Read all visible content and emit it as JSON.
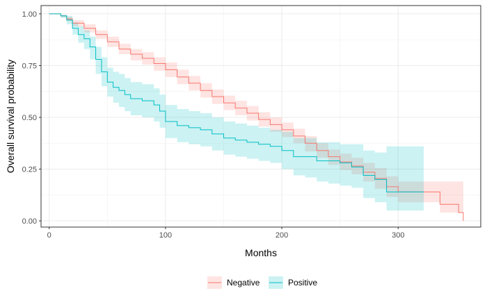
{
  "chart_data": {
    "type": "line",
    "subtype": "kaplan-meier survival curve with confidence bands",
    "xlabel": "Months",
    "ylabel": "Overall survival probability",
    "xlim": [
      -7,
      371
    ],
    "ylim": [
      -0.03,
      1.04
    ],
    "x_ticks": [
      0,
      100,
      200,
      300
    ],
    "x_tick_labels": [
      "0",
      "100",
      "200",
      "300"
    ],
    "y_ticks": [
      0,
      0.25,
      0.5,
      0.75,
      1.0
    ],
    "y_tick_labels": [
      "0.00",
      "0.25",
      "0.50",
      "0.75",
      "1.00"
    ],
    "grid": true,
    "legend_position": "bottom",
    "series": [
      {
        "name": "Negative",
        "color": "#F8766D",
        "fill": "#F8766D",
        "points": [
          [
            0,
            1.0
          ],
          [
            10,
            0.99
          ],
          [
            15,
            0.975
          ],
          [
            20,
            0.955
          ],
          [
            30,
            0.93
          ],
          [
            40,
            0.9
          ],
          [
            50,
            0.865
          ],
          [
            60,
            0.83
          ],
          [
            70,
            0.805
          ],
          [
            80,
            0.785
          ],
          [
            90,
            0.76
          ],
          [
            100,
            0.73
          ],
          [
            110,
            0.695
          ],
          [
            120,
            0.665
          ],
          [
            130,
            0.63
          ],
          [
            140,
            0.6
          ],
          [
            150,
            0.57
          ],
          [
            160,
            0.545
          ],
          [
            170,
            0.52
          ],
          [
            180,
            0.49
          ],
          [
            190,
            0.465
          ],
          [
            200,
            0.44
          ],
          [
            210,
            0.41
          ],
          [
            220,
            0.375
          ],
          [
            230,
            0.34
          ],
          [
            240,
            0.31
          ],
          [
            250,
            0.285
          ],
          [
            260,
            0.265
          ],
          [
            270,
            0.235
          ],
          [
            280,
            0.205
          ],
          [
            290,
            0.165
          ],
          [
            300,
            0.14
          ],
          [
            320,
            0.14
          ],
          [
            335,
            0.14
          ],
          [
            336,
            0.08
          ],
          [
            351,
            0.08
          ],
          [
            352,
            0.04
          ],
          [
            355,
            0.04
          ],
          [
            356,
            0.0
          ]
        ],
        "lower": [
          [
            0,
            1.0
          ],
          [
            10,
            0.985
          ],
          [
            15,
            0.965
          ],
          [
            20,
            0.94
          ],
          [
            30,
            0.91
          ],
          [
            40,
            0.88
          ],
          [
            50,
            0.84
          ],
          [
            60,
            0.805
          ],
          [
            70,
            0.775
          ],
          [
            80,
            0.755
          ],
          [
            90,
            0.725
          ],
          [
            100,
            0.695
          ],
          [
            110,
            0.66
          ],
          [
            120,
            0.63
          ],
          [
            130,
            0.595
          ],
          [
            140,
            0.565
          ],
          [
            150,
            0.535
          ],
          [
            160,
            0.51
          ],
          [
            170,
            0.485
          ],
          [
            180,
            0.455
          ],
          [
            190,
            0.43
          ],
          [
            200,
            0.405
          ],
          [
            210,
            0.375
          ],
          [
            220,
            0.335
          ],
          [
            230,
            0.305
          ],
          [
            240,
            0.27
          ],
          [
            250,
            0.245
          ],
          [
            260,
            0.225
          ],
          [
            270,
            0.19
          ],
          [
            280,
            0.155
          ],
          [
            290,
            0.115
          ],
          [
            300,
            0.09
          ],
          [
            320,
            0.09
          ],
          [
            335,
            0.09
          ],
          [
            336,
            0.04
          ],
          [
            356,
            0.0
          ]
        ],
        "upper": [
          [
            0,
            1.0
          ],
          [
            10,
            0.995
          ],
          [
            15,
            0.985
          ],
          [
            20,
            0.97
          ],
          [
            30,
            0.95
          ],
          [
            40,
            0.92
          ],
          [
            50,
            0.89
          ],
          [
            60,
            0.855
          ],
          [
            70,
            0.83
          ],
          [
            80,
            0.815
          ],
          [
            90,
            0.79
          ],
          [
            100,
            0.765
          ],
          [
            110,
            0.73
          ],
          [
            120,
            0.7
          ],
          [
            130,
            0.665
          ],
          [
            140,
            0.635
          ],
          [
            150,
            0.605
          ],
          [
            160,
            0.58
          ],
          [
            170,
            0.555
          ],
          [
            180,
            0.525
          ],
          [
            190,
            0.5
          ],
          [
            200,
            0.475
          ],
          [
            210,
            0.445
          ],
          [
            220,
            0.41
          ],
          [
            230,
            0.375
          ],
          [
            240,
            0.345
          ],
          [
            250,
            0.325
          ],
          [
            260,
            0.305
          ],
          [
            270,
            0.28
          ],
          [
            280,
            0.255
          ],
          [
            290,
            0.215
          ],
          [
            300,
            0.19
          ],
          [
            320,
            0.19
          ],
          [
            335,
            0.19
          ],
          [
            336,
            0.19
          ],
          [
            351,
            0.19
          ],
          [
            356,
            0.19
          ]
        ]
      },
      {
        "name": "Positive",
        "color": "#00BFC4",
        "fill": "#00BFC4",
        "points": [
          [
            0,
            1.0
          ],
          [
            10,
            0.99
          ],
          [
            15,
            0.97
          ],
          [
            20,
            0.93
          ],
          [
            25,
            0.9
          ],
          [
            30,
            0.88
          ],
          [
            35,
            0.84
          ],
          [
            40,
            0.78
          ],
          [
            45,
            0.72
          ],
          [
            50,
            0.67
          ],
          [
            55,
            0.645
          ],
          [
            60,
            0.63
          ],
          [
            65,
            0.61
          ],
          [
            70,
            0.59
          ],
          [
            80,
            0.58
          ],
          [
            90,
            0.56
          ],
          [
            95,
            0.53
          ],
          [
            100,
            0.48
          ],
          [
            110,
            0.46
          ],
          [
            120,
            0.45
          ],
          [
            130,
            0.44
          ],
          [
            140,
            0.42
          ],
          [
            150,
            0.4
          ],
          [
            160,
            0.39
          ],
          [
            170,
            0.38
          ],
          [
            180,
            0.37
          ],
          [
            190,
            0.36
          ],
          [
            200,
            0.34
          ],
          [
            210,
            0.31
          ],
          [
            220,
            0.31
          ],
          [
            230,
            0.29
          ],
          [
            240,
            0.29
          ],
          [
            250,
            0.28
          ],
          [
            260,
            0.26
          ],
          [
            270,
            0.22
          ],
          [
            280,
            0.2
          ],
          [
            290,
            0.14
          ],
          [
            300,
            0.14
          ],
          [
            322,
            0.14
          ]
        ],
        "lower": [
          [
            0,
            1.0
          ],
          [
            10,
            0.98
          ],
          [
            15,
            0.95
          ],
          [
            20,
            0.9
          ],
          [
            25,
            0.86
          ],
          [
            30,
            0.83
          ],
          [
            35,
            0.78
          ],
          [
            40,
            0.71
          ],
          [
            45,
            0.65
          ],
          [
            50,
            0.6
          ],
          [
            55,
            0.57
          ],
          [
            60,
            0.55
          ],
          [
            65,
            0.53
          ],
          [
            70,
            0.51
          ],
          [
            80,
            0.5
          ],
          [
            90,
            0.48
          ],
          [
            95,
            0.45
          ],
          [
            100,
            0.4
          ],
          [
            110,
            0.38
          ],
          [
            120,
            0.37
          ],
          [
            130,
            0.36
          ],
          [
            140,
            0.34
          ],
          [
            150,
            0.32
          ],
          [
            160,
            0.31
          ],
          [
            170,
            0.3
          ],
          [
            180,
            0.29
          ],
          [
            190,
            0.28
          ],
          [
            200,
            0.25
          ],
          [
            210,
            0.22
          ],
          [
            220,
            0.21
          ],
          [
            230,
            0.19
          ],
          [
            240,
            0.18
          ],
          [
            250,
            0.17
          ],
          [
            260,
            0.16
          ],
          [
            270,
            0.11
          ],
          [
            280,
            0.09
          ],
          [
            290,
            0.05
          ],
          [
            300,
            0.05
          ],
          [
            322,
            0.05
          ]
        ],
        "upper": [
          [
            0,
            1.0
          ],
          [
            10,
            0.995
          ],
          [
            15,
            0.99
          ],
          [
            20,
            0.96
          ],
          [
            25,
            0.94
          ],
          [
            30,
            0.92
          ],
          [
            35,
            0.89
          ],
          [
            40,
            0.84
          ],
          [
            45,
            0.79
          ],
          [
            50,
            0.74
          ],
          [
            55,
            0.72
          ],
          [
            60,
            0.71
          ],
          [
            65,
            0.69
          ],
          [
            70,
            0.67
          ],
          [
            80,
            0.66
          ],
          [
            90,
            0.64
          ],
          [
            95,
            0.61
          ],
          [
            100,
            0.56
          ],
          [
            110,
            0.54
          ],
          [
            120,
            0.53
          ],
          [
            130,
            0.52
          ],
          [
            140,
            0.5
          ],
          [
            150,
            0.48
          ],
          [
            160,
            0.47
          ],
          [
            170,
            0.46
          ],
          [
            180,
            0.45
          ],
          [
            190,
            0.44
          ],
          [
            200,
            0.43
          ],
          [
            210,
            0.4
          ],
          [
            220,
            0.4
          ],
          [
            230,
            0.38
          ],
          [
            240,
            0.38
          ],
          [
            250,
            0.37
          ],
          [
            260,
            0.37
          ],
          [
            270,
            0.34
          ],
          [
            280,
            0.33
          ],
          [
            290,
            0.36
          ],
          [
            300,
            0.36
          ],
          [
            322,
            0.36
          ]
        ]
      }
    ]
  }
}
